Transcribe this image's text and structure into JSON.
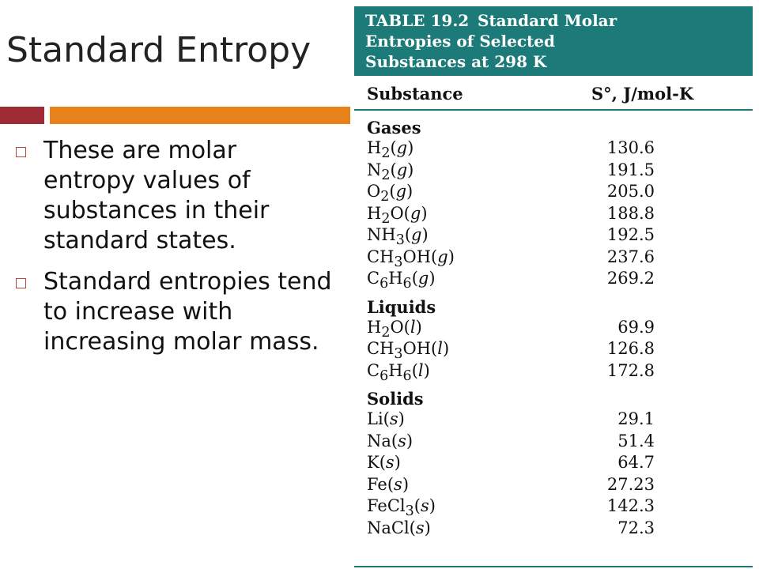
{
  "slide": {
    "title": "Standard Entropy",
    "bullets": [
      "These are molar entropy values of substances in their standard states.",
      "Standard entropies tend to increase with increasing molar mass."
    ]
  },
  "table": {
    "number": "TABLE 19.2",
    "title_line1": "Standard Molar",
    "title_line2": "Entropies of Selected",
    "title_line3": "Substances at 298 K",
    "col_substance": "Substance",
    "col_entropy": "S°, J/mol-K",
    "sections": [
      {
        "label": "Gases",
        "rows": [
          {
            "formula": [
              "H",
              "2",
              "(",
              "g",
              ")"
            ],
            "value": "130.6"
          },
          {
            "formula": [
              "N",
              "2",
              "(",
              "g",
              ")"
            ],
            "value": "191.5"
          },
          {
            "formula": [
              "O",
              "2",
              "(",
              "g",
              ")"
            ],
            "value": "205.0"
          },
          {
            "formula": [
              "H",
              "2",
              "O(",
              "g",
              ")"
            ],
            "value": "188.8"
          },
          {
            "formula": [
              "NH",
              "3",
              "(",
              "g",
              ")"
            ],
            "value": "192.5"
          },
          {
            "formula": [
              "CH",
              "3",
              "OH(",
              "g",
              ")"
            ],
            "value": "237.6"
          },
          {
            "formula": [
              "C",
              "6",
              "H",
              "6",
              "(g)"
            ],
            "value": "269.2"
          }
        ]
      },
      {
        "label": "Liquids",
        "rows": [
          {
            "formula": [
              "H",
              "2",
              "O(",
              "l",
              ")"
            ],
            "value": "69.9"
          },
          {
            "formula": [
              "CH",
              "3",
              "OH(",
              "l",
              ")"
            ],
            "value": "126.8"
          },
          {
            "formula": [
              "C",
              "6",
              "H",
              "6",
              "(l)"
            ],
            "value": "172.8"
          }
        ]
      },
      {
        "label": "Solids",
        "rows": [
          {
            "formula": [
              "Li(",
              "s",
              ")"
            ],
            "value": "29.1"
          },
          {
            "formula": [
              "Na(",
              "s",
              ")"
            ],
            "value": "51.4"
          },
          {
            "formula": [
              "K(",
              "s",
              ")"
            ],
            "value": "64.7"
          },
          {
            "formula": [
              "Fe(",
              "s",
              ")"
            ],
            "value": "27.23"
          },
          {
            "formula": [
              "FeCl",
              "3",
              "(",
              "s",
              ")"
            ],
            "value": "142.3"
          },
          {
            "formula": [
              "NaCl(",
              "s",
              ")"
            ],
            "value": "72.3"
          }
        ]
      }
    ]
  }
}
